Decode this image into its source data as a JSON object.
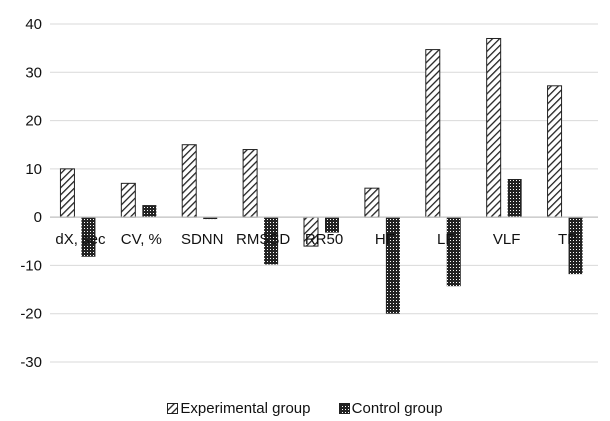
{
  "chart_data": {
    "type": "bar",
    "categories": [
      "dX, sec",
      "CV, %",
      "SDNN",
      "RMSSD",
      "RR50",
      "HF",
      "LF",
      "VLF",
      "TP"
    ],
    "series": [
      {
        "name": "Experimental group",
        "values": [
          10,
          7,
          15,
          14,
          -6,
          6,
          34.7,
          37,
          27.2
        ],
        "pattern": "diagonal-hatch"
      },
      {
        "name": "Control group",
        "values": [
          -8.2,
          2.5,
          -0.4,
          -9.8,
          -3.2,
          -20,
          -14.3,
          7.9,
          -11.8
        ],
        "pattern": "dark-dots"
      }
    ],
    "ylim": [
      -30,
      40
    ],
    "yticks": [
      -30,
      -20,
      -10,
      0,
      10,
      20,
      30,
      40
    ],
    "grid": true,
    "legend": "bottom",
    "colors": {
      "grid": "#d9d9d9",
      "axis": "#bfbfbf",
      "bar_outline": "#222222",
      "text": "#111111"
    }
  }
}
